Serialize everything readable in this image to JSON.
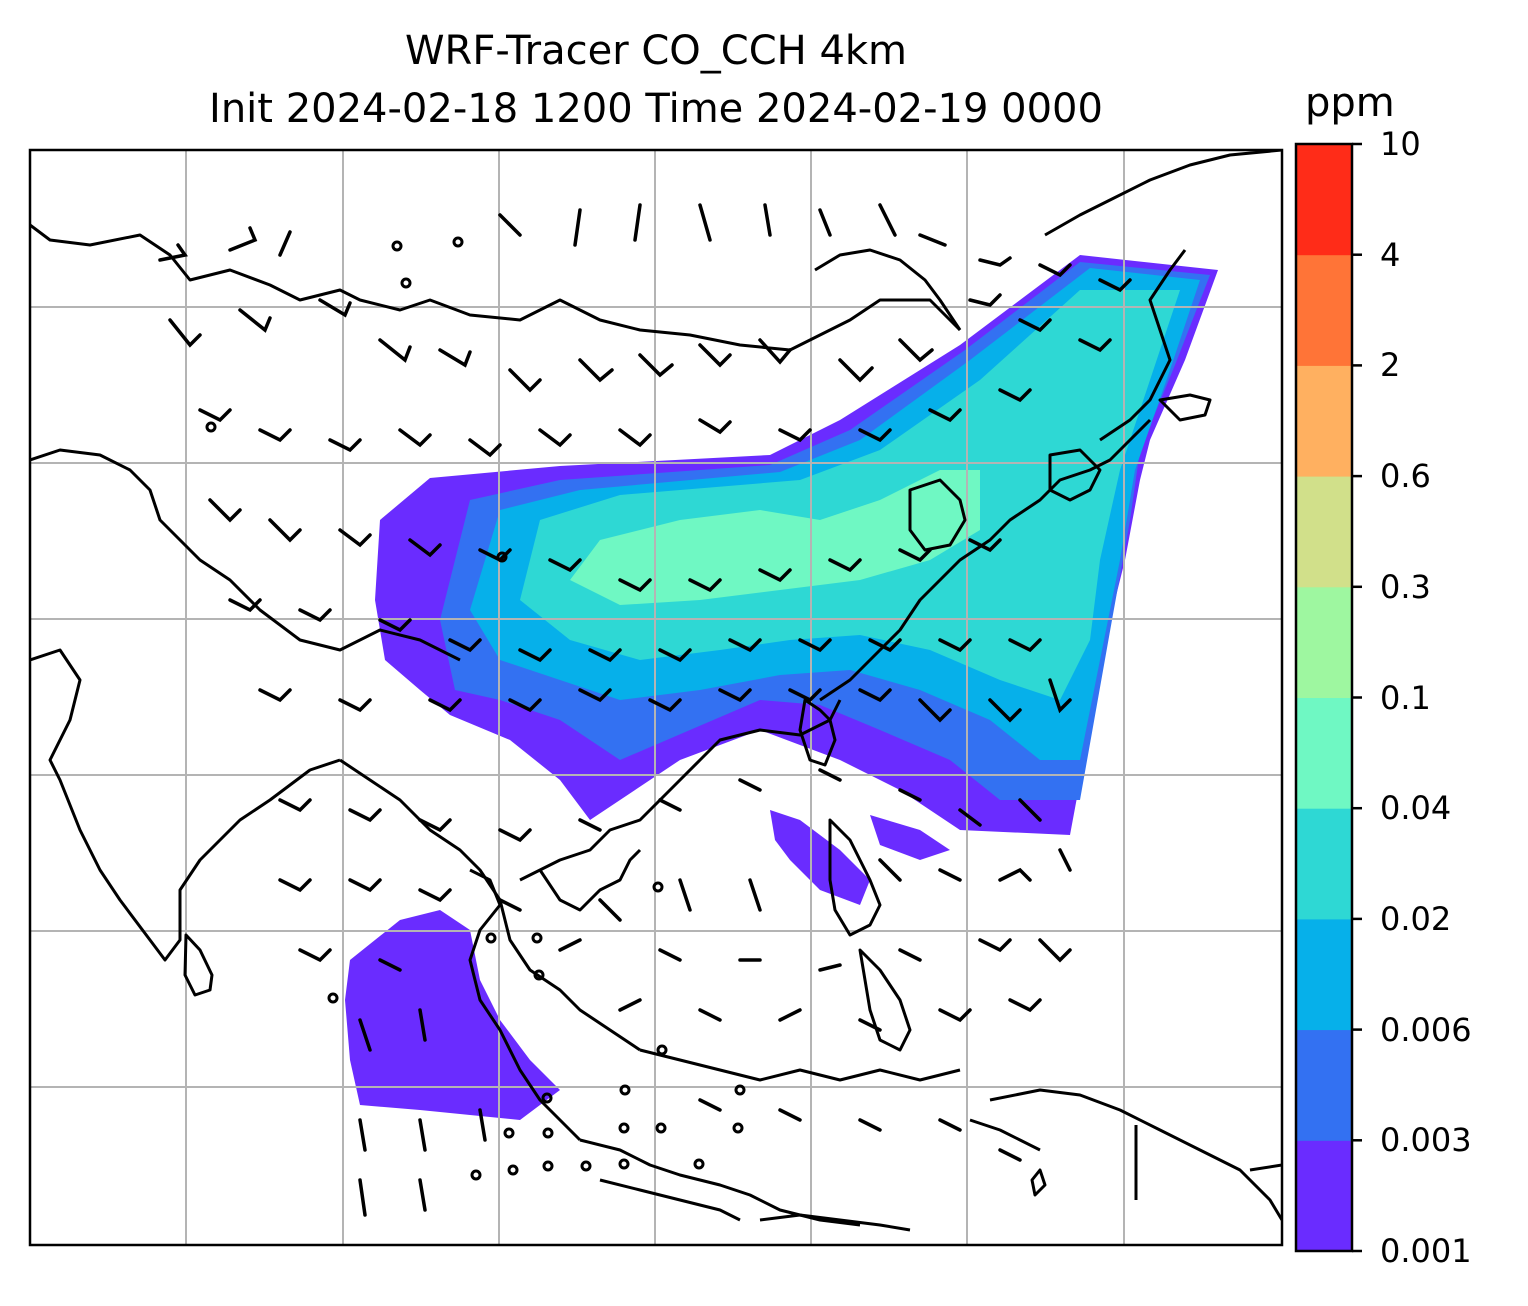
{
  "title": {
    "line1": "WRF-Tracer CO_CCH 4km",
    "line2": "Init 2024-02-18 1200 Time 2024-02-19 0000"
  },
  "colorbar": {
    "unit": "ppm",
    "ticks": [
      "10",
      "4",
      "2",
      "0.6",
      "0.3",
      "0.1",
      "0.04",
      "0.02",
      "0.006",
      "0.003",
      "0.001"
    ],
    "colors": [
      "#6a2cff",
      "#3371f2",
      "#06b0ea",
      "#2ed8d4",
      "#6ff8c3",
      "#9ef7a0",
      "#d1e08a",
      "#ffb060",
      "#ff7437",
      "#ff2c18"
    ]
  },
  "map": {
    "type": "tracer concentration field with wind barbs",
    "gridlines": true,
    "coastlines": true,
    "concentration_levels": [
      "0.001",
      "0.003",
      "0.006",
      "0.02",
      "0.04",
      "0.1",
      "0.3",
      "0.6",
      "2",
      "4",
      "10"
    ]
  }
}
